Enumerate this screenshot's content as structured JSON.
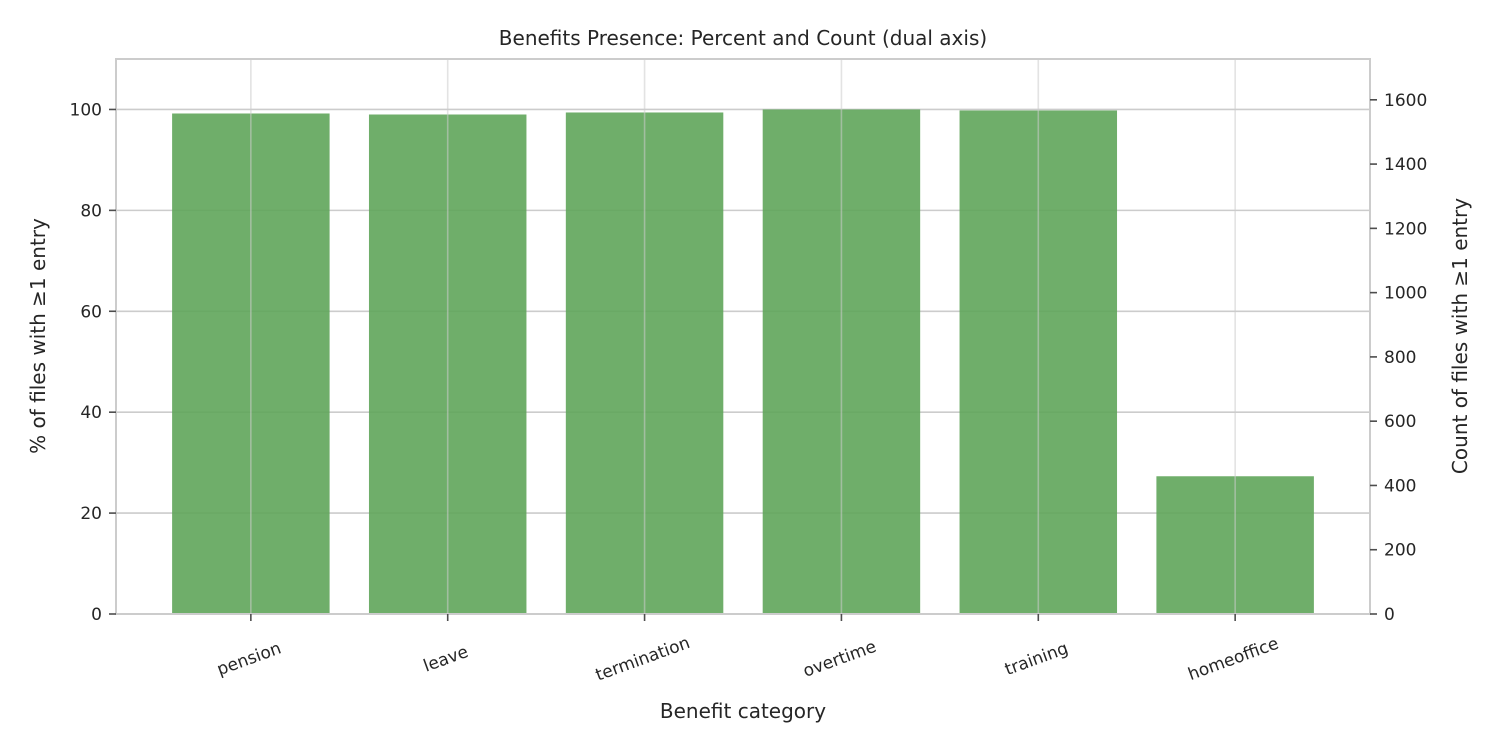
{
  "chart_data": {
    "type": "bar",
    "title": "Benefits Presence: Percent and Count (dual axis)",
    "xlabel": "Benefit category",
    "ylabel": "% of files with ≥1 entry",
    "y2label": "Count of files with ≥1 entry",
    "categories": [
      "pension",
      "leave",
      "termination",
      "overtime",
      "training",
      "homeoffice"
    ],
    "series": [
      {
        "values": [
          99.2,
          99.0,
          99.4,
          100.0,
          99.8,
          27.3
        ],
        "axis": "left",
        "color": "#5fa55a"
      },
      {
        "values": [
          1557,
          1553,
          1560,
          1570,
          1566,
          428
        ],
        "axis": "right",
        "color": "#5fa55a"
      }
    ],
    "ylim": [
      0,
      110
    ],
    "y2lim": [
      0,
      1727
    ],
    "yticks": [
      0,
      20,
      40,
      60,
      80,
      100
    ],
    "y2ticks": [
      0,
      200,
      400,
      600,
      800,
      1000,
      1200,
      1400,
      1600
    ],
    "grid": true,
    "legend": "none",
    "bar_color": "#5fa55a"
  }
}
